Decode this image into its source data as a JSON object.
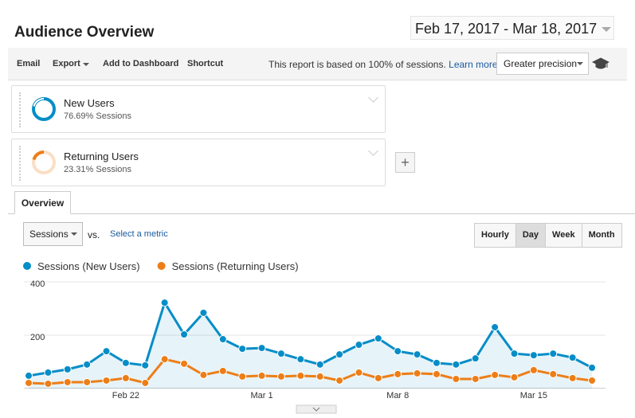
{
  "header": {
    "title": "Audience Overview",
    "date_range": "Feb 17, 2017 - Mar 18, 2017"
  },
  "toolbar": {
    "items": [
      "Email",
      "Export",
      "Add to Dashboard",
      "Shortcut"
    ],
    "note": "This report is based on 100% of sessions.",
    "link": "Learn more",
    "precision": "Greater precision"
  },
  "segments": [
    {
      "name": "New Users",
      "detail": "76.69% Sessions",
      "color": "#058dc7"
    },
    {
      "name": "Returning Users",
      "detail": "23.31% Sessions",
      "color": "#ed7e17"
    }
  ],
  "tab": "Overview",
  "controls": {
    "metric": "Sessions",
    "vs": "vs.",
    "select": "Select a metric",
    "periods": [
      "Hourly",
      "Day",
      "Week",
      "Month"
    ],
    "active_period": 1
  },
  "chart_data": {
    "type": "line",
    "x": [
      null,
      null,
      null,
      null,
      null,
      "Feb 22",
      null,
      null,
      null,
      null,
      null,
      null,
      "Mar 1",
      null,
      null,
      null,
      null,
      null,
      null,
      "Mar 8",
      null,
      null,
      null,
      null,
      null,
      null,
      "Mar 15",
      null,
      null,
      null
    ],
    "series": [
      {
        "name": "Sessions (New Users)",
        "color": "#058dc7",
        "values": [
          48,
          60,
          72,
          90,
          140,
          96,
          87,
          322,
          203,
          284,
          185,
          149,
          152,
          131,
          110,
          90,
          128,
          164,
          188,
          140,
          128,
          96,
          90,
          113,
          230,
          131,
          125,
          131,
          116,
          78
        ]
      },
      {
        "name": "Sessions (Returning Users)",
        "color": "#ed7e17",
        "values": [
          21,
          18,
          24,
          24,
          30,
          39,
          21,
          110,
          93,
          51,
          66,
          45,
          48,
          45,
          48,
          45,
          30,
          60,
          39,
          54,
          57,
          54,
          36,
          36,
          51,
          42,
          69,
          54,
          39,
          30
        ]
      }
    ],
    "ylim": [
      0,
      400
    ],
    "yticks": [
      200,
      400
    ],
    "grid": true,
    "area": true
  }
}
